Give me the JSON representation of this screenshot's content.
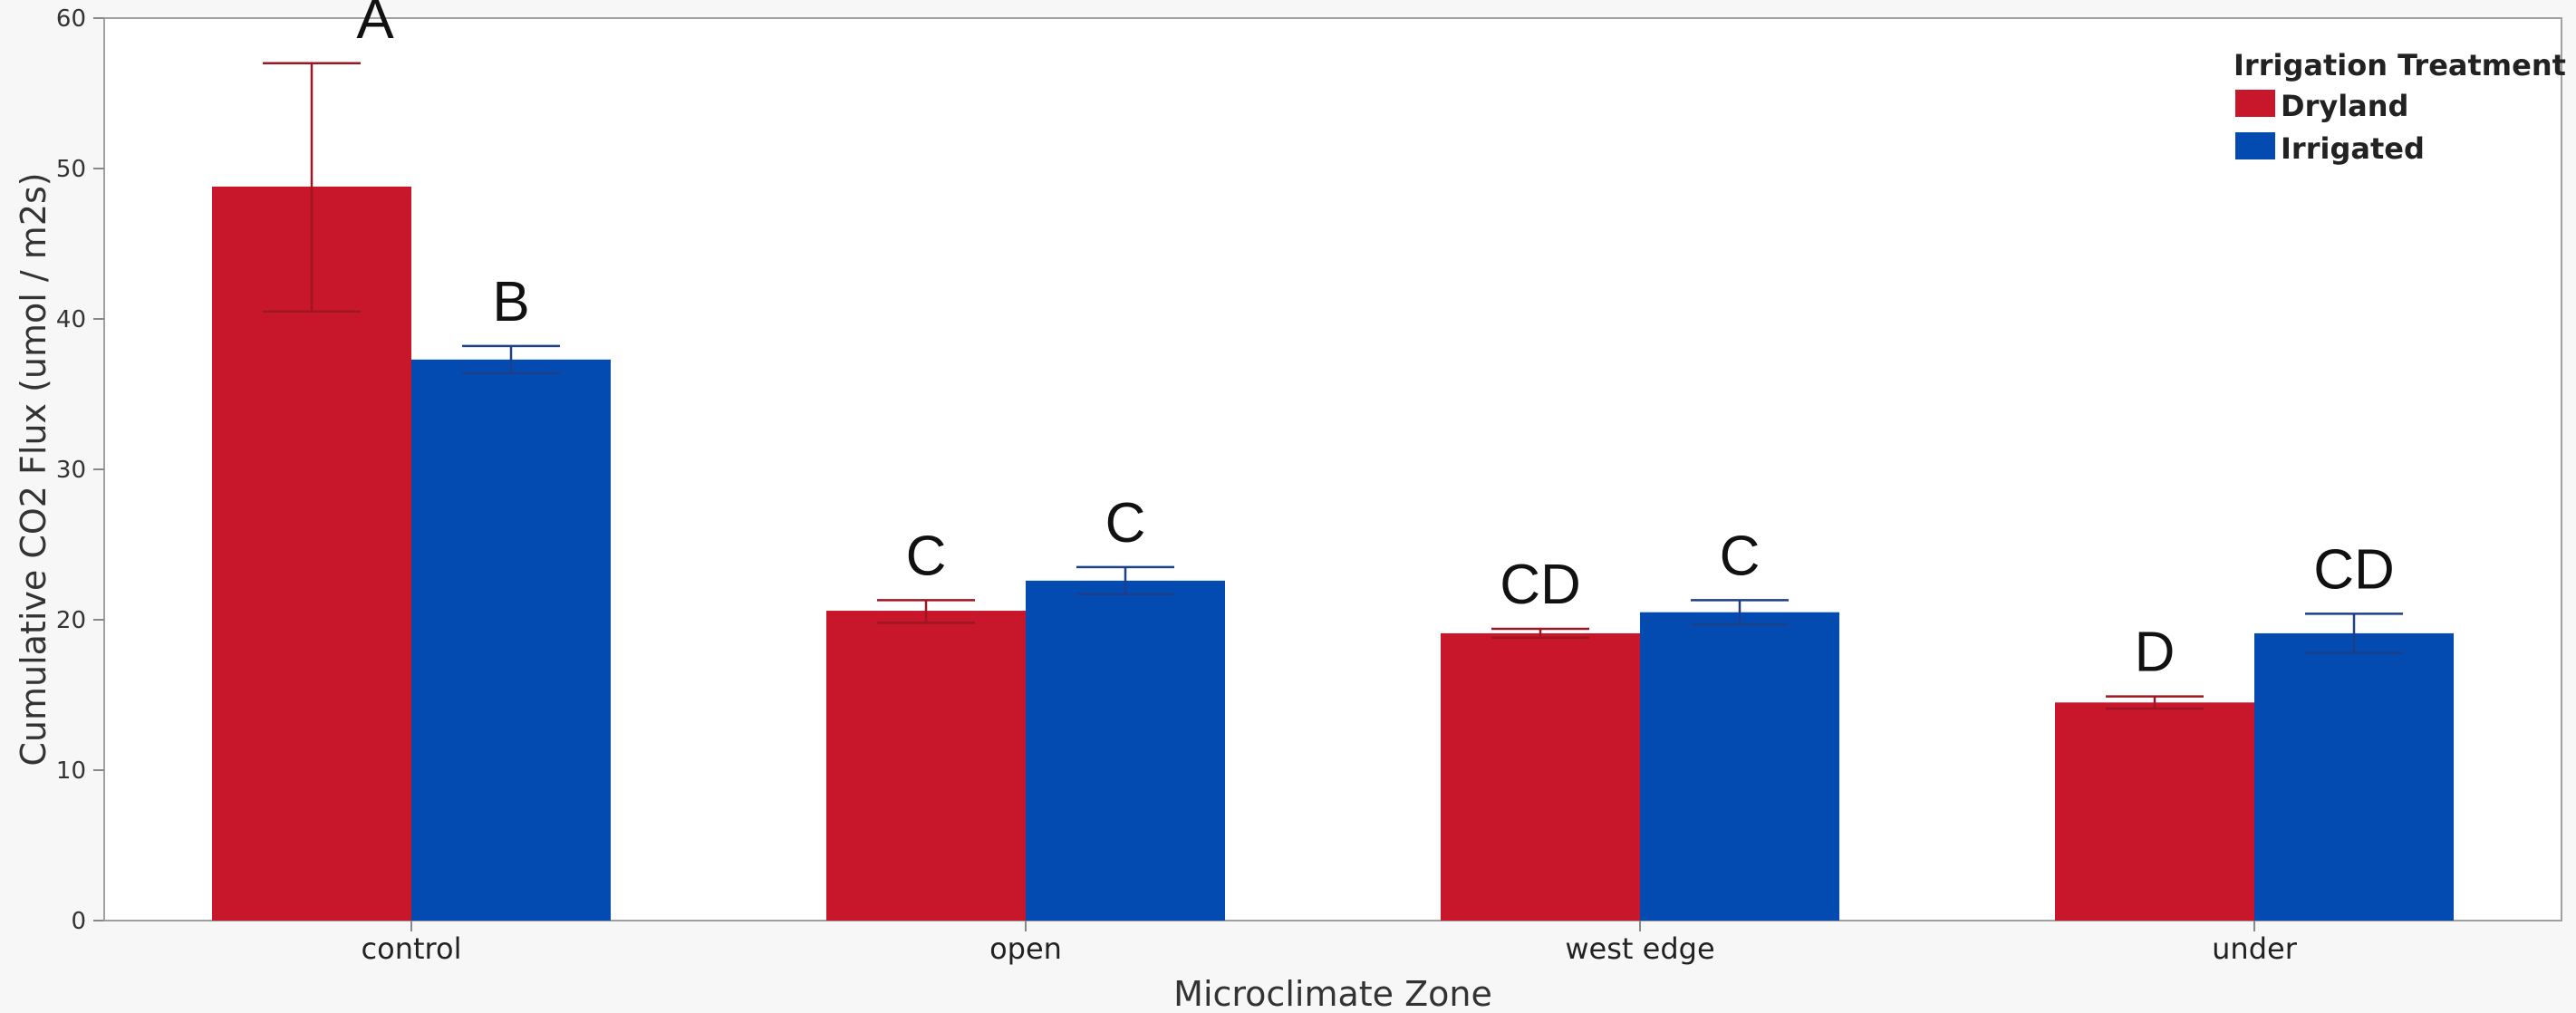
{
  "chart_data": {
    "type": "bar",
    "xlabel": "Microclimate Zone",
    "ylabel": "Cumulative CO2 Flux (umol / m2s)",
    "ylim": [
      0,
      60
    ],
    "yticks": [
      0,
      10,
      20,
      30,
      40,
      50,
      60
    ],
    "categories": [
      "control",
      "open",
      "west edge",
      "under"
    ],
    "legend": {
      "title": "Irrigation Treatment",
      "position": "top-right"
    },
    "grid": false,
    "series": [
      {
        "name": "Dryland",
        "color": "#c8172b",
        "values": [
          48.8,
          20.6,
          19.1,
          14.5
        ],
        "error_low": [
          40.5,
          19.8,
          18.8,
          14.1
        ],
        "error_high": [
          57.0,
          21.3,
          19.4,
          14.9
        ],
        "labels": [
          "A",
          "C",
          "CD",
          "D"
        ]
      },
      {
        "name": "Irrigated",
        "color": "#034bb0",
        "values": [
          37.3,
          22.6,
          20.5,
          19.1
        ],
        "error_low": [
          36.4,
          21.7,
          19.7,
          17.8
        ],
        "error_high": [
          38.2,
          23.5,
          21.3,
          20.4
        ],
        "labels": [
          "B",
          "C",
          "C",
          "CD"
        ]
      }
    ]
  }
}
